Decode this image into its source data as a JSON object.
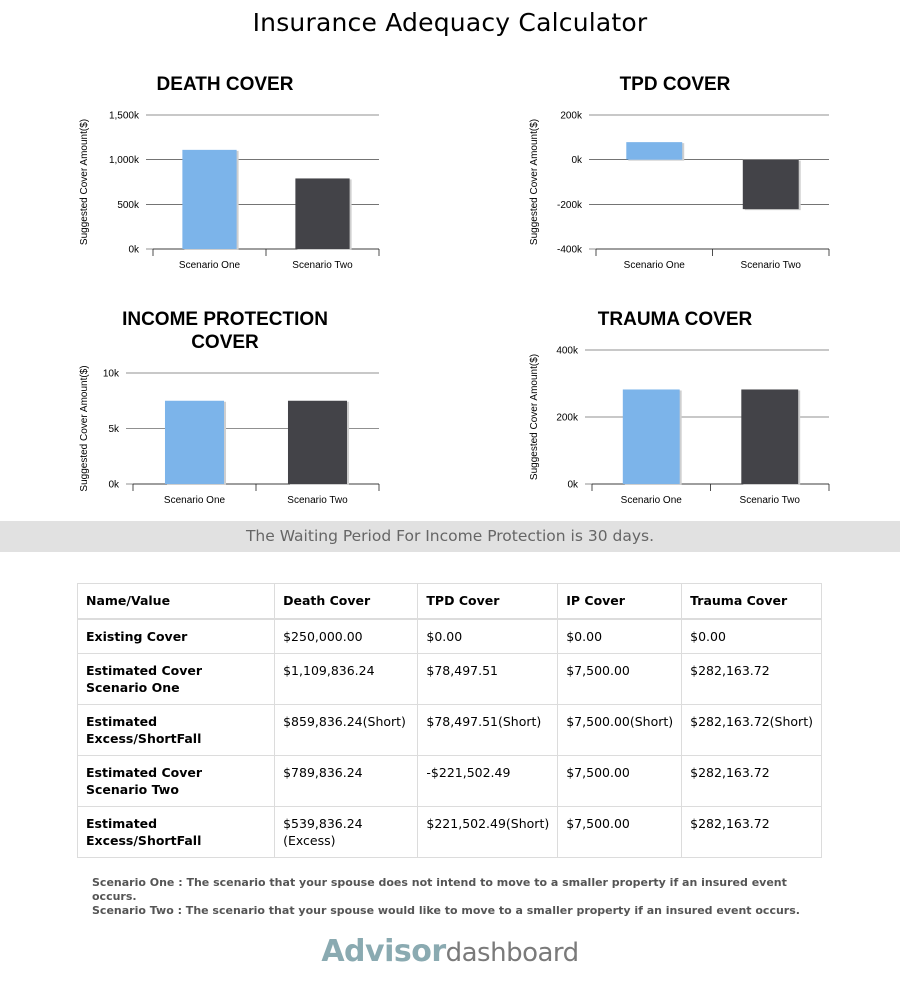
{
  "page": {
    "title": "Insurance Adequacy Calculator",
    "waiting_period": "The Waiting Period For Income Protection is 30 days."
  },
  "chart_data": [
    {
      "type": "bar",
      "title": "DEATH COVER",
      "ylabel": "Suggested Cover Amount($)",
      "categories": [
        "Scenario One",
        "Scenario Two"
      ],
      "values": [
        1109836.24,
        789836.24
      ],
      "colors": [
        "#7cb4ea",
        "#434348"
      ],
      "ylim": [
        0,
        1500000
      ],
      "yticks": [
        0,
        500000,
        1000000,
        1500000
      ],
      "ytick_labels": [
        "0k",
        "500k",
        "1,000k",
        "1,500k"
      ],
      "grid": true
    },
    {
      "type": "bar",
      "title": "TPD COVER",
      "ylabel": "Suggested Cover Amount($)",
      "categories": [
        "Scenario One",
        "Scenario Two"
      ],
      "values": [
        78497.51,
        -221502.49
      ],
      "colors": [
        "#7cb4ea",
        "#434348"
      ],
      "ylim": [
        -400000,
        200000
      ],
      "yticks": [
        -400000,
        -200000,
        0,
        200000
      ],
      "ytick_labels": [
        "-400k",
        "-200k",
        "0k",
        "200k"
      ],
      "grid": true
    },
    {
      "type": "bar",
      "title": "INCOME PROTECTION COVER",
      "title_lines": [
        "INCOME PROTECTION",
        "COVER"
      ],
      "ylabel": "Suggested Cover Amount($)",
      "categories": [
        "Scenario One",
        "Scenario Two"
      ],
      "values": [
        7500,
        7500
      ],
      "colors": [
        "#7cb4ea",
        "#434348"
      ],
      "ylim": [
        0,
        10000
      ],
      "yticks": [
        0,
        5000,
        10000
      ],
      "ytick_labels": [
        "0k",
        "5k",
        "10k"
      ],
      "grid": true
    },
    {
      "type": "bar",
      "title": "TRAUMA COVER",
      "ylabel": "Suggested Cover Amount($)",
      "categories": [
        "Scenario One",
        "Scenario Two"
      ],
      "values": [
        282163.72,
        282163.72
      ],
      "colors": [
        "#7cb4ea",
        "#434348"
      ],
      "ylim": [
        0,
        400000
      ],
      "yticks": [
        0,
        200000,
        400000
      ],
      "ytick_labels": [
        "0k",
        "200k",
        "400k"
      ],
      "grid": true
    }
  ],
  "table": {
    "headers": [
      "Name/Value",
      "Death Cover",
      "TPD Cover",
      "IP Cover",
      "Trauma Cover"
    ],
    "rows": [
      [
        "Existing Cover",
        "$250,000.00",
        "$0.00",
        "$0.00",
        "$0.00"
      ],
      [
        "Estimated Cover Scenario One",
        "$1,109,836.24",
        "$78,497.51",
        "$7,500.00",
        "$282,163.72"
      ],
      [
        "Estimated Excess/ShortFall",
        "$859,836.24(Short)",
        "$78,497.51(Short)",
        "$7,500.00(Short)",
        "$282,163.72(Short)"
      ],
      [
        "Estimated Cover Scenario Two",
        "$789,836.24",
        "-$221,502.49",
        "$7,500.00",
        "$282,163.72"
      ],
      [
        "Estimated Excess/ShortFall",
        "$539,836.24 (Excess)",
        "$221,502.49(Short)",
        "$7,500.00",
        "$282,163.72"
      ]
    ]
  },
  "notes": {
    "scenario_one": "Scenario One : The scenario that your spouse does not intend to move to a smaller property if an insured event occurs.",
    "scenario_two": "Scenario Two : The scenario that your spouse would like to move to a smaller property if an insured event occurs."
  },
  "logo": {
    "bold": "Advisor",
    "light": "dashboard"
  }
}
